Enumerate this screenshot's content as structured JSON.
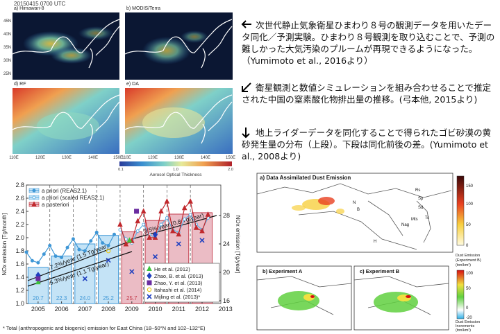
{
  "maps_panel": {
    "date": "20150415 0700 UTC",
    "panels": [
      "a) Himawari-8",
      "b) MODIS/Terra",
      "d) RF",
      "e) DA"
    ],
    "lat_labels": [
      "45N",
      "40N",
      "35N",
      "30N",
      "25N"
    ],
    "lon_labels": [
      "110E",
      "120E",
      "130E",
      "140E",
      "150E"
    ],
    "colorbar": {
      "label": "Aerosol Optical Thickness",
      "ticks": [
        "0.1",
        "1.0",
        "2.0"
      ]
    }
  },
  "captions": [
    "次世代静止気象衛星ひまわり８号の観測データを用いたデータ同化／予測実験。ひまわり８号観測を取り込むことで、予測の難しかった大気汚染のプルームが再現できるようになった。（Yumimoto et al., 2016より）",
    "衛星観測と数値シミュレーションを組み合わせることで推定された中国の窒素酸化物排出量の推移。(弓本他, 2015より)",
    "地上ライダーデータを同化することで得られたゴビ砂漠の黄砂発生量の分布（上段）。下段は同化前後の差。(Yumimoto et al., 2008より)"
  ],
  "dust_panel": {
    "title": "a) Data Assimilated Dust Emission",
    "sites": [
      "Rs",
      "Sp",
      "Sd",
      "Nag",
      "Mts",
      "Ts",
      "B",
      "N",
      "H"
    ],
    "colorbar_a": {
      "ticks": [
        "150",
        "100",
        "50",
        "0"
      ],
      "label_lines": [
        "Dust Emission",
        "(Experiment B)",
        "(ton/km²)"
      ]
    },
    "subpanels": [
      "b) Experiment A",
      "c) Experiment B"
    ],
    "colorbar_b": {
      "ticks": [
        "100",
        "50",
        "0",
        "-20"
      ],
      "label_lines": [
        "Dust Emission",
        "Increments",
        "(ton/km²)"
      ]
    }
  },
  "chart_data": {
    "type": "combo",
    "ylabel": "NOx emission [Tg/month]",
    "y2label": "NOx emission [Tg/year]",
    "note": "* Total (anthropogenic and biogenic) emission for East China (18–50°N and 102–132°E)",
    "xlim": [
      2005,
      2013.3
    ],
    "xticks": [
      {
        "value": 2005.5,
        "label": "2005"
      },
      {
        "value": 2006.5,
        "label": "2006"
      },
      {
        "value": 2007.5,
        "label": "2007"
      },
      {
        "value": 2008.5,
        "label": "2008"
      },
      {
        "value": 2009.5,
        "label": "2009"
      },
      {
        "value": 2010.5,
        "label": "2010"
      },
      {
        "value": 2011.5,
        "label": "2011"
      },
      {
        "value": 2012.5,
        "label": "2012"
      },
      {
        "value": 2013.5,
        "label": "2013"
      }
    ],
    "xgrid": [
      2006,
      2007,
      2008,
      2009,
      2010,
      2011,
      2012
    ],
    "grid_style": "dashed",
    "ylim": [
      1.0,
      2.8
    ],
    "yticks": [
      {
        "value": 1,
        "label": "1.0"
      },
      1.2,
      1.4,
      1.6,
      1.8,
      {
        "value": 2,
        "label": "2.0"
      },
      2.2,
      2.4,
      2.6,
      2.8
    ],
    "y2lim": [
      15.6,
      32.3
    ],
    "y2ticks": [
      16,
      20,
      24,
      28
    ],
    "bars": {
      "axis": "y2",
      "x": [
        2005.5,
        2006.5,
        2007.5,
        2008.5,
        2009.5,
        2010.5,
        2011.5,
        2012.5
      ],
      "values": [
        20.7,
        22.3,
        24.0,
        25.2,
        25.7,
        27.3,
        28.2,
        28.4
      ],
      "value_labels": [
        "20.7",
        "22.3",
        "24.0",
        "25.2",
        "25.7",
        "27.3",
        "28.2",
        "28.4"
      ],
      "fills": [
        "#c4e3f6",
        "#c4e3f6",
        "#c4e3f6",
        "#c4e3f6",
        "#ebbcc5",
        "#ebbcc5",
        "#ebbcc5",
        "#ebbcc5"
      ],
      "colors": [
        "#3f97d6",
        "#3f97d6",
        "#3f97d6",
        "#3f97d6",
        "#c23a4a",
        "#c23a4a",
        "#c23a4a",
        "#c23a4a"
      ]
    },
    "legend": "upper left",
    "series": [
      {
        "name": "a priori (REAS2.1)",
        "mark": "line",
        "marker": "circle",
        "filled": true,
        "color": "#3f97d6",
        "swatch": "#c4e3f6",
        "x": [
          2005.0,
          2005.25,
          2005.5,
          2005.75,
          2006.0,
          2006.25,
          2006.5,
          2006.75,
          2007.0,
          2007.25,
          2007.5,
          2007.75,
          2008.0,
          2008.25,
          2008.5,
          2008.75
        ],
        "values": [
          1.78,
          1.65,
          1.62,
          1.75,
          1.88,
          1.72,
          1.7,
          1.85,
          1.98,
          1.82,
          1.8,
          1.95,
          2.08,
          1.92,
          1.88,
          2.05
        ]
      },
      {
        "name": "a priori (scaled REAS2.1)",
        "mark": "line",
        "marker": "circle",
        "filled": false,
        "color": "#5fb0e4",
        "swatch": "#c4e3f6",
        "x": [
          2009.0,
          2009.25,
          2009.5,
          2009.75,
          2010.0,
          2010.25,
          2010.5,
          2010.75,
          2011.0,
          2011.25,
          2011.5,
          2011.75,
          2012.0,
          2012.25,
          2012.5,
          2012.75
        ],
        "values": [
          2.12,
          1.98,
          1.92,
          2.1,
          2.2,
          2.05,
          2.0,
          2.2,
          2.3,
          2.12,
          2.08,
          2.28,
          2.35,
          2.2,
          2.12,
          2.3
        ]
      },
      {
        "name": "a posteriori",
        "mark": "line",
        "marker": "triangle",
        "filled": true,
        "color": "#c0282d",
        "swatch": "#ebbcc5",
        "x": [
          2009.0,
          2009.25,
          2009.5,
          2009.75,
          2010.0,
          2010.25,
          2010.5,
          2010.75,
          2011.0,
          2011.25,
          2011.5,
          2011.75,
          2012.0,
          2012.25,
          2012.5,
          2012.75
        ],
        "values": [
          2.2,
          1.9,
          1.95,
          2.25,
          2.4,
          2.0,
          2.0,
          2.4,
          2.55,
          2.1,
          2.05,
          2.45,
          2.55,
          2.15,
          2.1,
          2.35
        ]
      }
    ],
    "legend2": "lower right",
    "estimates": [
      {
        "name": "He et al. (2012)",
        "marker": "triangle",
        "color": "#3cc43c",
        "axis": "y2",
        "x": [
          2005.5,
          2009.4
        ],
        "values": [
          18.6,
          24.5
        ]
      },
      {
        "name": "Zhao, B. et al. (2013)",
        "marker": "diamond",
        "color": "#1f3fbf",
        "axis": "y2",
        "x": [
          2005.5,
          2010.5
        ],
        "values": [
          19.6,
          25.3
        ]
      },
      {
        "name": "Zhao, Y. et al. (2013)",
        "marker": "square",
        "color": "#6a2ca0",
        "axis": "y2",
        "x": [
          2005.5,
          2009.7
        ],
        "values": [
          19.1,
          28.6
        ]
      },
      {
        "name": "Itahashi et al. (2014)",
        "marker": "ring",
        "color": "#e8c81c",
        "axis": "y2",
        "x": [
          2008.5
        ],
        "values": [
          23.0
        ]
      },
      {
        "name": "Mijling et al. (2013)*",
        "marker": "x",
        "color": "#2040c0",
        "axis": "y2",
        "x": [
          2007.5,
          2008.5,
          2009.5,
          2010.5,
          2011.5,
          2012.5
        ],
        "values": [
          19.1,
          21.7,
          20.1,
          22.2,
          24.0,
          24.5
        ]
      }
    ],
    "annotations": [
      "7.2%/year (1.5 Tg/year)",
      "5.3%/year (1.1 Tg/year)",
      "3.5%/year (0.8 Tg/year)"
    ]
  }
}
